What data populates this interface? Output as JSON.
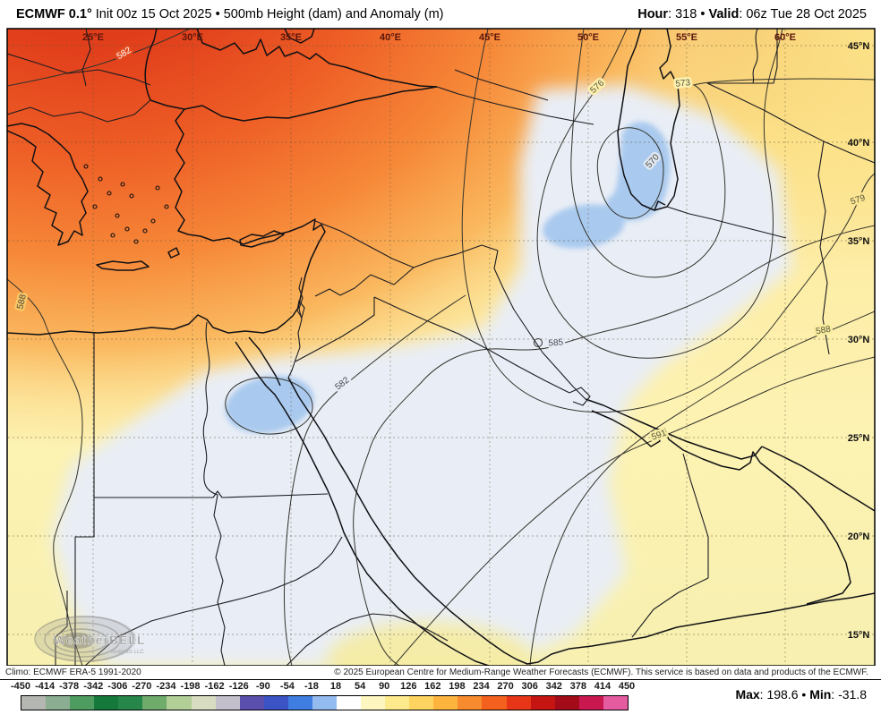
{
  "header": {
    "product_bold": "ECMWF 0.1°",
    "product_rest": " Init 00z 15 Oct 2025 • 500mb Height (dam) and Anomaly (m)",
    "hour_label": "Hour",
    "hour_value": ": 318 • ",
    "valid_label": "Valid",
    "valid_value": ": 06z Tue 28 Oct 2025"
  },
  "map": {
    "lon_labels": [
      "25°E",
      "30°E",
      "35°E",
      "40°E",
      "45°E",
      "50°E",
      "55°E",
      "60°E"
    ],
    "lat_labels": [
      "45°N",
      "40°N",
      "35°N",
      "30°N",
      "25°N",
      "20°N",
      "15°N"
    ],
    "contour_labels": [
      "582",
      "573",
      "576",
      "570",
      "579",
      "588",
      "582",
      "585",
      "588",
      "591"
    ],
    "logo": {
      "name": "WeatherBELL",
      "sub": "Analytics LLC"
    }
  },
  "footer": {
    "climo": "Climo: ECMWF ERA-5 1991-2020",
    "copyright": "© 2025 European Centre for Medium-Range Weather Forecasts (ECMWF). This service is based on data and products of the ECMWF.",
    "max_label": "Max",
    "max_value": ": 198.6",
    "separator": " • ",
    "min_label": "Min",
    "min_value": ": -31.8"
  },
  "colorbar": {
    "tick_labels": [
      "-450",
      "-414",
      "-378",
      "-342",
      "-306",
      "-270",
      "-234",
      "-198",
      "-162",
      "-126",
      "-90",
      "-54",
      "-18",
      "18",
      "54",
      "90",
      "126",
      "162",
      "198",
      "234",
      "270",
      "306",
      "342",
      "378",
      "414",
      "450"
    ],
    "segment_colors": [
      "#b4b7b1",
      "#8bad92",
      "#4f9c60",
      "#15793c",
      "#27874a",
      "#6fab6b",
      "#b2cf97",
      "#d8dcc0",
      "#c3c0cb",
      "#5b4fae",
      "#3b53c4",
      "#3f7de0",
      "#93bbf0",
      "#ffffff",
      "#fdf6c0",
      "#fdea8c",
      "#fdd45f",
      "#fcb43f",
      "#f98b2f",
      "#f4611f",
      "#e63517",
      "#c51513",
      "#a30b19",
      "#c91850",
      "#e45b9f"
    ]
  }
}
